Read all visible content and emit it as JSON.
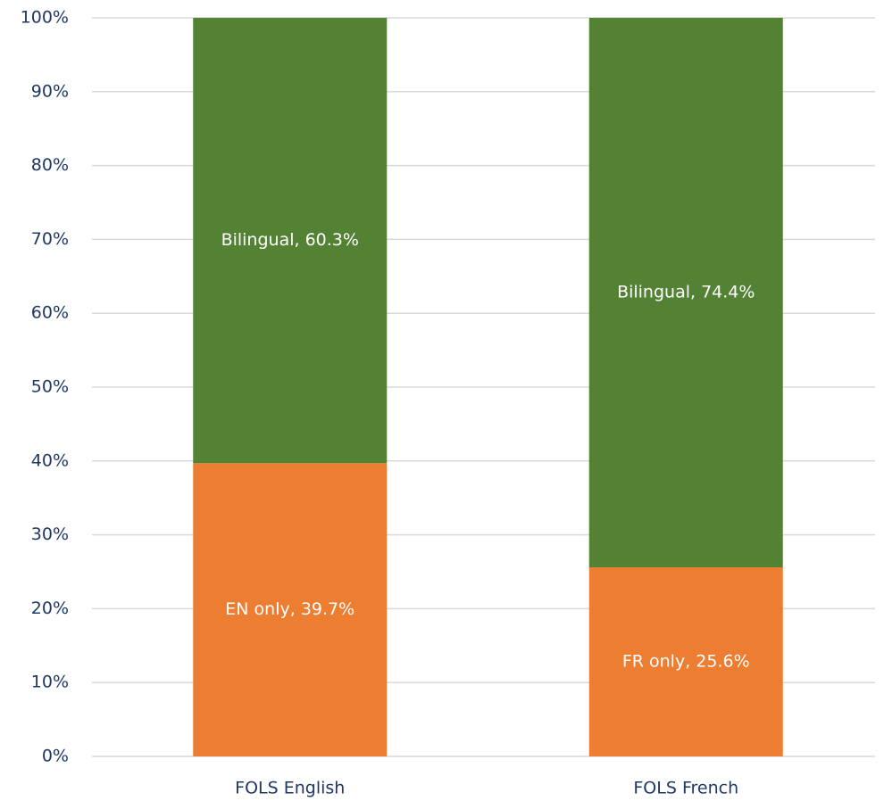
{
  "chart_data": {
    "type": "stacked_bar",
    "categories": [
      "FOLS English",
      "FOLS French"
    ],
    "series": [
      {
        "color": "#ed7d31",
        "values": [
          39.7,
          25.6
        ],
        "value_labels": [
          "EN only, 39.7%",
          "FR only, 25.6%"
        ]
      },
      {
        "color": "#548235",
        "values": [
          60.3,
          74.4
        ],
        "value_labels": [
          "Bilingual, 60.3%",
          "Bilingual, 74.4%"
        ]
      }
    ],
    "ylim": [
      0,
      100
    ],
    "yticks": [
      {
        "value": 0,
        "label": "0%"
      },
      {
        "value": 10,
        "label": "10%"
      },
      {
        "value": 20,
        "label": "20%"
      },
      {
        "value": 30,
        "label": "30%"
      },
      {
        "value": 40,
        "label": "40%"
      },
      {
        "value": 50,
        "label": "50%"
      },
      {
        "value": 60,
        "label": "60%"
      },
      {
        "value": 70,
        "label": "70%"
      },
      {
        "value": 80,
        "label": "80%"
      },
      {
        "value": 90,
        "label": "90%"
      },
      {
        "value": 100,
        "label": "100%"
      }
    ],
    "grid": true
  }
}
